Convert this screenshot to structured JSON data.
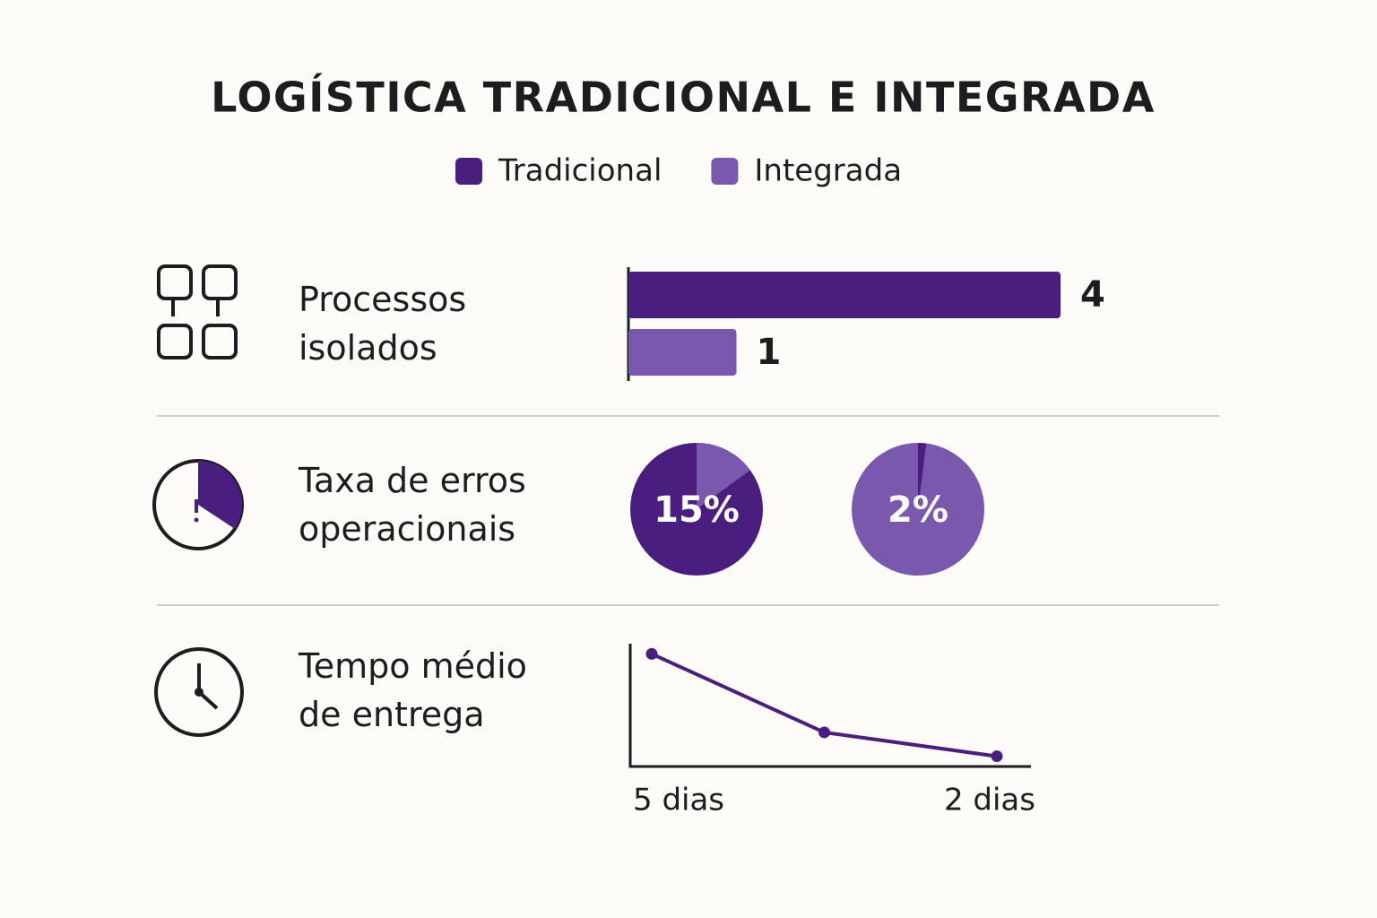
{
  "title": "LOGÍSTICA TRADICIONAL E INTEGRADA",
  "chart_data": [
    {
      "type": "bar",
      "title": "Processos isolados",
      "orientation": "horizontal",
      "series": [
        {
          "name": "Tradicional",
          "color": "#4a1e7e",
          "values": [
            4
          ]
        },
        {
          "name": "Integrada",
          "color": "#7a58ae",
          "values": [
            1
          ]
        }
      ]
    },
    {
      "type": "pie",
      "title": "Taxa de erros operacionais",
      "series": [
        {
          "color": "#4a1e7e",
          "accent": "#7a58ae",
          "values": [
            15
          ],
          "value_labels": [
            "15%"
          ]
        },
        {
          "color": "#7a58ae",
          "accent": "#4a1e7e",
          "values": [
            2
          ],
          "value_labels": [
            "2%"
          ]
        }
      ]
    },
    {
      "type": "line",
      "title": "Tempo médio de entrega",
      "categories": [
        "5 dias",
        null,
        "2 dias"
      ],
      "color": "#4a1e7e",
      "values": [
        5,
        2.7,
        2
      ],
      "ylim": [
        1.7,
        5.3
      ]
    }
  ]
}
